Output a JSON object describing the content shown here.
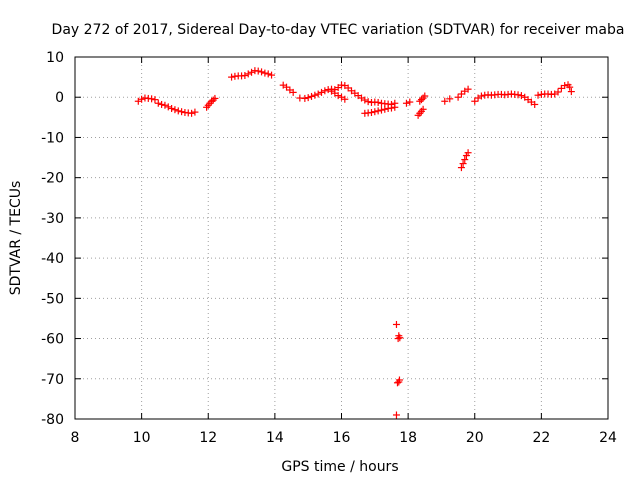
{
  "chart_data": {
    "type": "scatter",
    "title": "Day 272 of 2017, Sidereal Day-to-day VTEC variation (SDTVAR) for receiver maba",
    "xlabel": "GPS time / hours",
    "ylabel": "SDTVAR / TECUs",
    "xlim": [
      8,
      24
    ],
    "ylim": [
      -80,
      10
    ],
    "xticks": [
      "8",
      "10",
      "12",
      "14",
      "16",
      "18",
      "20",
      "22",
      "24"
    ],
    "yticks": [
      "10",
      "0",
      "-10",
      "-20",
      "-30",
      "-40",
      "-50",
      "-60",
      "-70",
      "-80"
    ],
    "grid": true,
    "marker": "+",
    "color": "#ff0000",
    "series": [
      {
        "name": "SDTVAR",
        "segments": [
          [
            [
              9.9,
              -1.0
            ],
            [
              10.0,
              -0.5
            ],
            [
              10.1,
              -0.2
            ],
            [
              10.2,
              -0.3
            ],
            [
              10.3,
              -0.4
            ],
            [
              10.4,
              -0.6
            ]
          ],
          [
            [
              10.5,
              -1.5
            ],
            [
              10.6,
              -1.8
            ],
            [
              10.7,
              -2.0
            ],
            [
              10.8,
              -2.4
            ],
            [
              10.9,
              -2.8
            ],
            [
              11.0,
              -3.1
            ],
            [
              11.1,
              -3.4
            ],
            [
              11.2,
              -3.6
            ],
            [
              11.3,
              -3.8
            ],
            [
              11.4,
              -3.9
            ],
            [
              11.5,
              -4.0
            ],
            [
              11.6,
              -3.7
            ]
          ],
          [
            [
              11.95,
              -2.5
            ],
            [
              12.0,
              -2.0
            ],
            [
              12.05,
              -1.5
            ],
            [
              12.1,
              -1.0
            ],
            [
              12.15,
              -0.7
            ],
            [
              12.2,
              -0.3
            ]
          ],
          [
            [
              12.7,
              5.0
            ],
            [
              12.8,
              5.2
            ],
            [
              12.9,
              5.3
            ],
            [
              13.0,
              5.3
            ],
            [
              13.1,
              5.4
            ],
            [
              13.2,
              5.8
            ],
            [
              13.3,
              6.2
            ],
            [
              13.4,
              6.6
            ],
            [
              13.5,
              6.5
            ],
            [
              13.6,
              6.3
            ],
            [
              13.7,
              6.0
            ],
            [
              13.8,
              5.8
            ],
            [
              13.9,
              5.5
            ]
          ],
          [
            [
              14.25,
              3.0
            ],
            [
              14.35,
              2.5
            ],
            [
              14.45,
              1.8
            ],
            [
              14.55,
              1.2
            ]
          ],
          [
            [
              14.75,
              -0.2
            ],
            [
              14.9,
              -0.3
            ],
            [
              15.0,
              -0.1
            ],
            [
              15.1,
              0.2
            ],
            [
              15.2,
              0.5
            ],
            [
              15.3,
              0.8
            ],
            [
              15.4,
              1.2
            ],
            [
              15.5,
              1.6
            ],
            [
              15.6,
              1.9
            ],
            [
              15.7,
              2.0
            ],
            [
              15.8,
              1.9
            ],
            [
              15.9,
              2.4
            ],
            [
              16.0,
              3.0
            ],
            [
              16.1,
              2.9
            ],
            [
              16.2,
              2.3
            ],
            [
              16.3,
              1.6
            ],
            [
              16.4,
              1.0
            ],
            [
              16.5,
              0.4
            ],
            [
              16.6,
              -0.2
            ],
            [
              16.7,
              -0.7
            ],
            [
              16.8,
              -1.1
            ],
            [
              16.9,
              -1.3
            ],
            [
              17.0,
              -1.2
            ],
            [
              17.1,
              -1.3
            ],
            [
              17.2,
              -1.5
            ],
            [
              17.3,
              -1.6
            ],
            [
              17.4,
              -1.7
            ],
            [
              17.5,
              -1.8
            ],
            [
              17.6,
              -1.5
            ]
          ],
          [
            [
              15.7,
              1.5
            ],
            [
              15.8,
              1.0
            ],
            [
              15.9,
              0.4
            ],
            [
              16.0,
              0.0
            ],
            [
              16.1,
              -0.5
            ]
          ],
          [
            [
              16.7,
              -4.0
            ],
            [
              16.8,
              -3.9
            ],
            [
              16.9,
              -3.8
            ],
            [
              17.0,
              -3.6
            ],
            [
              17.1,
              -3.4
            ],
            [
              17.2,
              -3.2
            ],
            [
              17.3,
              -3.0
            ],
            [
              17.4,
              -2.8
            ],
            [
              17.5,
              -2.7
            ],
            [
              17.6,
              -2.5
            ]
          ],
          [
            [
              17.65,
              -56.5
            ],
            [
              17.7,
              -60.0
            ],
            [
              17.72,
              -59.3
            ],
            [
              17.75,
              -59.8
            ],
            [
              17.68,
              -71.0
            ],
            [
              17.72,
              -70.8
            ],
            [
              17.74,
              -70.3
            ],
            [
              17.65,
              -79.0
            ]
          ],
          [
            [
              17.95,
              -1.5
            ],
            [
              18.05,
              -1.2
            ]
          ],
          [
            [
              18.3,
              -4.5
            ],
            [
              18.35,
              -4.0
            ],
            [
              18.4,
              -3.5
            ],
            [
              18.45,
              -3.0
            ]
          ],
          [
            [
              18.35,
              -1.0
            ],
            [
              18.4,
              -0.6
            ],
            [
              18.45,
              -0.2
            ],
            [
              18.5,
              0.3
            ]
          ],
          [
            [
              19.1,
              -1.0
            ],
            [
              19.25,
              -0.4
            ]
          ],
          [
            [
              19.5,
              0.0
            ],
            [
              19.6,
              0.8
            ],
            [
              19.7,
              1.5
            ],
            [
              19.8,
              2.0
            ]
          ],
          [
            [
              19.6,
              -17.5
            ],
            [
              19.65,
              -16.5
            ],
            [
              19.7,
              -15.5
            ],
            [
              19.75,
              -14.5
            ],
            [
              19.8,
              -13.8
            ]
          ],
          [
            [
              20.0,
              -1.0
            ],
            [
              20.1,
              -0.2
            ],
            [
              20.2,
              0.3
            ],
            [
              20.3,
              0.5
            ],
            [
              20.4,
              0.6
            ],
            [
              20.5,
              0.5
            ],
            [
              20.6,
              0.6
            ],
            [
              20.7,
              0.7
            ],
            [
              20.8,
              0.7
            ],
            [
              20.9,
              0.6
            ],
            [
              21.0,
              0.7
            ],
            [
              21.1,
              0.8
            ],
            [
              21.2,
              0.7
            ],
            [
              21.3,
              0.6
            ],
            [
              21.4,
              0.4
            ],
            [
              21.5,
              0.0
            ],
            [
              21.6,
              -0.6
            ],
            [
              21.7,
              -1.2
            ],
            [
              21.8,
              -1.8
            ]
          ],
          [
            [
              21.9,
              0.5
            ],
            [
              22.0,
              0.7
            ],
            [
              22.1,
              0.8
            ],
            [
              22.2,
              0.8
            ],
            [
              22.3,
              0.7
            ],
            [
              22.4,
              0.8
            ],
            [
              22.5,
              1.3
            ],
            [
              22.6,
              2.2
            ],
            [
              22.7,
              2.9
            ],
            [
              22.8,
              3.1
            ],
            [
              22.85,
              2.5
            ],
            [
              22.9,
              1.4
            ]
          ]
        ]
      }
    ]
  }
}
